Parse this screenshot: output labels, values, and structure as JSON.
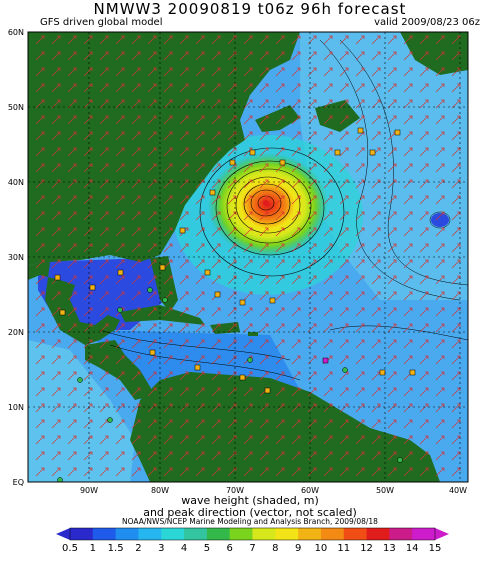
{
  "header": {
    "title": "NMWW3 20090819 t06z    96h forecast",
    "model": "GFS driven global model",
    "valid": "valid 2009/08/23 06z"
  },
  "axes": {
    "lat_labels": [
      "60N",
      "50N",
      "40N",
      "30N",
      "20N",
      "10N",
      "EQ"
    ],
    "lon_labels": [
      "90W",
      "80W",
      "70W",
      "60W",
      "50W",
      "40W"
    ]
  },
  "caption": {
    "line1": "wave height (shaded, m)",
    "line2": "and peak direction (vector, not scaled)",
    "credit": "NOAA/NWS/NCEP Marine Modeling and Analysis Branch, 2009/08/18"
  },
  "colorbar": {
    "labels": [
      "0.5",
      "1",
      "1.5",
      "2",
      "3",
      "4",
      "5",
      "6",
      "7",
      "8",
      "9",
      "10",
      "11",
      "12",
      "13",
      "14",
      "15"
    ],
    "colors": [
      "#2a2acc",
      "#1f5bea",
      "#1f8ef0",
      "#25b6f0",
      "#2ad6d6",
      "#33c4a0",
      "#33b84a",
      "#7ad41e",
      "#d6e81c",
      "#f2e416",
      "#f2b414",
      "#f28a14",
      "#f04e14",
      "#e01c1c",
      "#cc1c8a",
      "#cc1ccc"
    ]
  },
  "map": {
    "ocean_color": "#4aaaf0",
    "land_color": "#1f6b1f",
    "hurricane_center": "#e01c1c"
  }
}
